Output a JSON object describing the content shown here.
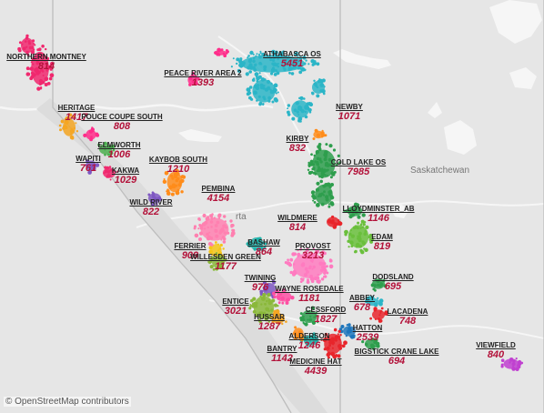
{
  "map": {
    "attribution": "© OpenStreetMap contributors",
    "place_labels": [
      {
        "key": "saskatchewan",
        "text": "Saskatchewan"
      },
      {
        "key": "alberta",
        "text": "rta"
      }
    ],
    "colors": {
      "land": "#e6e6e6",
      "water": "#f6f6f6",
      "border": "#bfbfbf",
      "label_value": "#b3123a"
    },
    "plays": [
      {
        "name": "NORTHERN MONTNEY",
        "value": "814",
        "color": "#f0286e"
      },
      {
        "name": "PEACE RIVER AREA 2",
        "value": "1393",
        "color": "#ff2d8a"
      },
      {
        "name": "ATHABASCA OS",
        "value": "5451",
        "color": "#2bb5c7"
      },
      {
        "name": "NEWBY",
        "value": "1071",
        "color": "#2bb5c7"
      },
      {
        "name": "HERITAGE",
        "value": "1417",
        "color": "#f5a623"
      },
      {
        "name": "POUCE COUPE SOUTH",
        "value": "808",
        "color": "#ff2d8a"
      },
      {
        "name": "ELMWORTH",
        "value": "1006",
        "color": "#4caf50"
      },
      {
        "name": "WAPITI",
        "value": "761",
        "color": "#7e57c2"
      },
      {
        "name": "KAKWA",
        "value": "1029",
        "color": "#f0286e"
      },
      {
        "name": "KIRBY",
        "value": "832",
        "color": "#ff8c1a"
      },
      {
        "name": "COLD LAKE OS",
        "value": "7985",
        "color": "#2e9e4d"
      },
      {
        "name": "KAYBOB SOUTH",
        "value": "1210",
        "color": "#ff8c1a"
      },
      {
        "name": "WILD RIVER",
        "value": "822",
        "color": "#7e57c2"
      },
      {
        "name": "LLOYDMINSTER_AB",
        "value": "1146",
        "color": "#2e9e4d"
      },
      {
        "name": "WILDMERE",
        "value": "814",
        "color": "#e8252b"
      },
      {
        "name": "EDAM",
        "value": "819",
        "color": "#6abf3c"
      },
      {
        "name": "PEMBINA",
        "value": "4154",
        "color": "#ff80b0"
      },
      {
        "name": "BASHAW",
        "value": "864",
        "color": "#20b2aa"
      },
      {
        "name": "FERRIER",
        "value": "909",
        "color": "#f5c518"
      },
      {
        "name": "WILLESDEN GREEN",
        "value": "1177",
        "color": "#8ab83a"
      },
      {
        "name": "PROVOST",
        "value": "3213",
        "color": "#ff7bc0"
      },
      {
        "name": "DODSLAND",
        "value": "695",
        "color": "#2e9e4d"
      },
      {
        "name": "TWINING",
        "value": "976",
        "color": "#7e57c2"
      },
      {
        "name": "WAYNE ROSEDALE",
        "value": "1181",
        "color": "#ff4fa3"
      },
      {
        "name": "ABBEY",
        "value": "678",
        "color": "#2bb5c7"
      },
      {
        "name": "ENTICE",
        "value": "3021",
        "color": "#8ab83a"
      },
      {
        "name": "CESSFORD",
        "value": "1827",
        "color": "#2e9e4d"
      },
      {
        "name": "LACADENA",
        "value": "748",
        "color": "#e8252b"
      },
      {
        "name": "HUSSAR",
        "value": "1287",
        "color": "#f5a623"
      },
      {
        "name": "HATTON",
        "value": "2539",
        "color": "#1c75bc"
      },
      {
        "name": "ALDERSON",
        "value": "1246",
        "color": "#20b2aa"
      },
      {
        "name": "BANTRY",
        "value": "1142",
        "color": "#ff8c1a"
      },
      {
        "name": "MEDICINE HAT",
        "value": "4439",
        "color": "#e8252b"
      },
      {
        "name": "BIGSTICK CRANE LAKE",
        "value": "694",
        "color": "#2e9e4d"
      },
      {
        "name": "VIEWFIELD",
        "value": "840",
        "color": "#c040d0"
      }
    ]
  }
}
